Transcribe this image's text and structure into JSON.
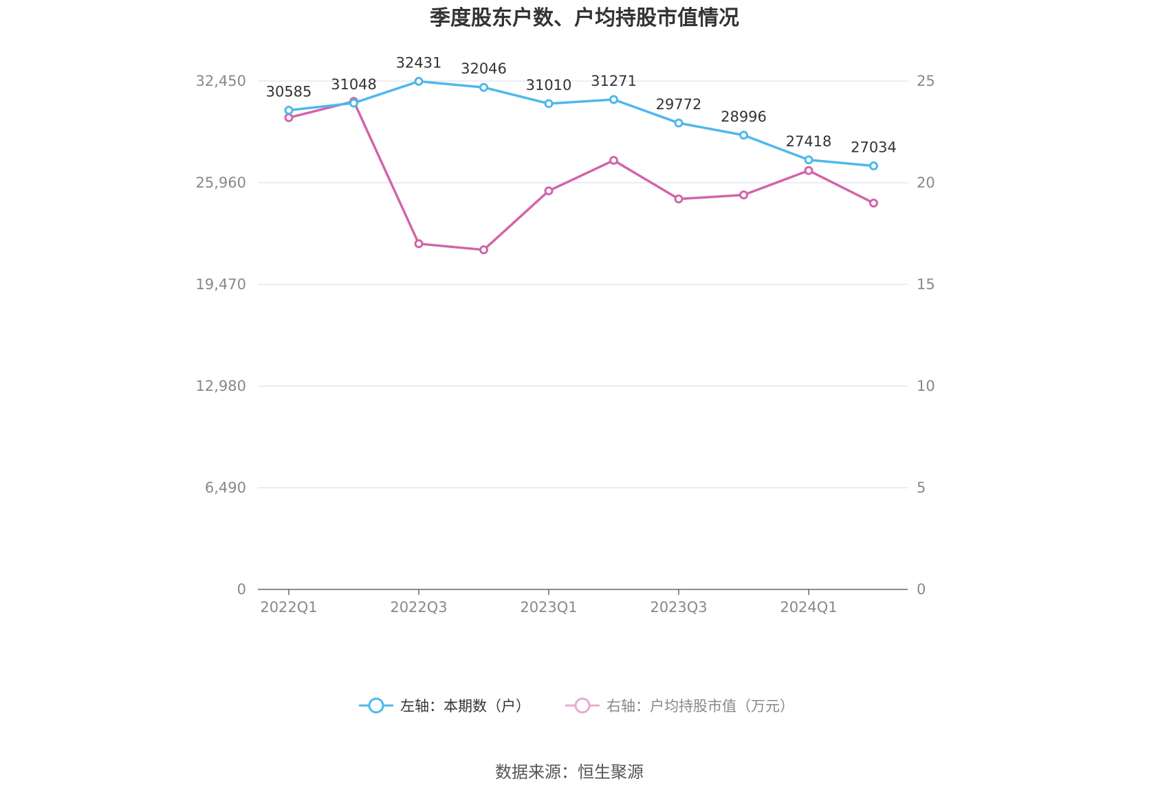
{
  "title": "季度股东户数、户均持股市值情况",
  "source": "数据来源：恒生聚源",
  "colors": {
    "left_series": "#4DB8EC",
    "right_series": "#D264A9",
    "grid": "#E3E7F0",
    "axis": "#888888"
  },
  "chart_data": {
    "type": "line",
    "title": "季度股东户数、户均持股市值情况",
    "categories": [
      "2022Q1",
      "2022Q2",
      "2022Q3",
      "2022Q4",
      "2023Q1",
      "2023Q2",
      "2023Q3",
      "2023Q4",
      "2024Q1",
      "2024Q2"
    ],
    "x_tick_labels": [
      "2022Q1",
      "2022Q3",
      "2023Q1",
      "2023Q3",
      "2024Q1"
    ],
    "left_axis": {
      "ylim": [
        0,
        32450
      ],
      "ticks": [
        0,
        6490,
        12980,
        19470,
        25960,
        32450
      ],
      "tick_labels": [
        "0",
        "6,490",
        "12,980",
        "19,470",
        "25,960",
        "32,450"
      ]
    },
    "right_axis": {
      "ylim": [
        0,
        25
      ],
      "ticks": [
        0,
        5,
        10,
        15,
        20,
        25
      ],
      "tick_labels": [
        "0",
        "5",
        "10",
        "15",
        "20",
        "25"
      ]
    },
    "grid": true,
    "legend_position": "bottom",
    "series": [
      {
        "name": "左轴：本期数（户）",
        "axis": "left",
        "values": [
          30585,
          31048,
          32431,
          32046,
          31010,
          31271,
          29772,
          28996,
          27418,
          27034
        ],
        "labels": [
          "30585",
          "31048",
          "32431",
          "32046",
          "31010",
          "31271",
          "29772",
          "28996",
          "27418",
          "27034"
        ]
      },
      {
        "name": "右轴：户均持股市值（万元）",
        "axis": "right",
        "values": [
          23.2,
          24.0,
          17.0,
          16.7,
          19.6,
          21.1,
          19.2,
          19.4,
          20.6,
          19.0
        ]
      }
    ]
  }
}
